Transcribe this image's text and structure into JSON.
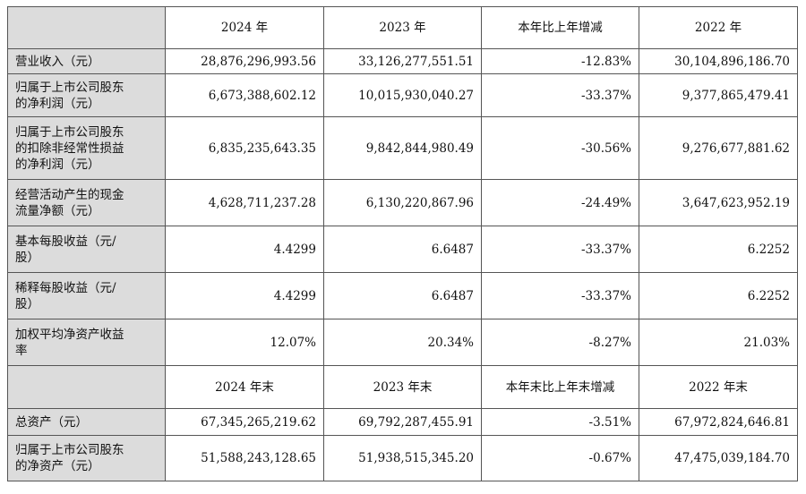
{
  "header1": [
    "2024 年",
    "2023 年",
    "本年比上年增减",
    "2022 年"
  ],
  "rows1": [
    {
      "label": [
        "营业收入（元）"
      ],
      "values": [
        "28,876,296,993.56",
        "33,126,277,551.51",
        "-12.83%",
        "30,104,896,186.70"
      ]
    },
    {
      "label": [
        "归属于上市公司股东",
        "的净利润（元）"
      ],
      "values": [
        "6,673,388,602.12",
        "10,015,930,040.27",
        "-33.37%",
        "9,377,865,479.41"
      ]
    },
    {
      "label": [
        "归属于上市公司股东",
        "的扣除非经常性损益",
        "的净利润（元）"
      ],
      "values": [
        "6,835,235,643.35",
        "9,842,844,980.49",
        "-30.56%",
        "9,276,677,881.62"
      ]
    },
    {
      "label": [
        "经营活动产生的现金",
        "流量净额（元）"
      ],
      "values": [
        "4,628,711,237.28",
        "6,130,220,867.96",
        "-24.49%",
        "3,647,623,952.19"
      ]
    },
    {
      "label": [
        "基本每股收益（元/",
        "股）"
      ],
      "values": [
        "4.4299",
        "6.6487",
        "-33.37%",
        "6.2252"
      ]
    },
    {
      "label": [
        "稀释每股收益（元/",
        "股）"
      ],
      "values": [
        "4.4299",
        "6.6487",
        "-33.37%",
        "6.2252"
      ]
    },
    {
      "label": [
        "加权平均净资产收益",
        "率"
      ],
      "values": [
        "12.07%",
        "20.34%",
        "-8.27%",
        "21.03%"
      ]
    }
  ],
  "header2": [
    "2024 年末",
    "2023 年末",
    "本年末比上年末增减",
    "2022 年末"
  ],
  "rows2": [
    {
      "label": [
        "总资产（元）"
      ],
      "values": [
        "67,345,265,219.62",
        "69,792,287,455.91",
        "-3.51%",
        "67,972,824,646.81"
      ]
    },
    {
      "label": [
        "归属于上市公司股东",
        "的净资产（元）"
      ],
      "values": [
        "51,588,243,128.65",
        "51,938,515,345.20",
        "-0.67%",
        "47,475,039,184.70"
      ]
    }
  ]
}
